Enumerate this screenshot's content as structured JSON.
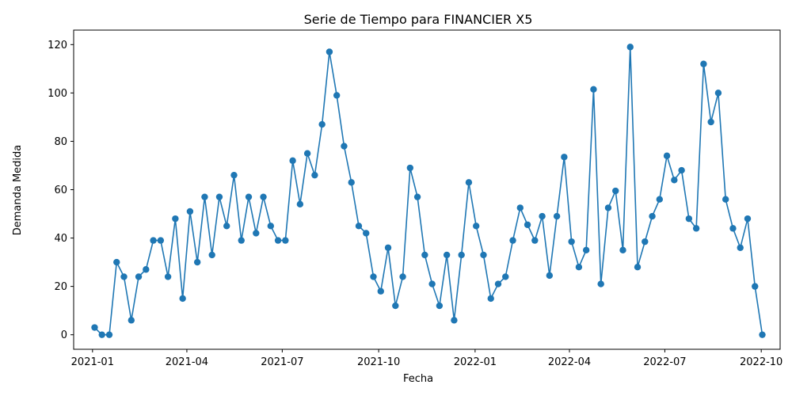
{
  "chart_data": {
    "type": "line",
    "title": "Serie de Tiempo para FINANCIER X5",
    "xlabel": "Fecha",
    "ylabel": "Demanda Medida",
    "x_tick_labels": [
      "2021-01",
      "2021-04",
      "2021-07",
      "2021-10",
      "2022-01",
      "2022-04",
      "2022-07",
      "2022-10"
    ],
    "y_ticks": [
      0,
      20,
      40,
      60,
      80,
      100,
      120
    ],
    "ylim": [
      -6,
      126
    ],
    "xlim": [
      "2020-12-14",
      "2022-10-19"
    ],
    "grid": false,
    "series": [
      {
        "color": "#1f77b4",
        "marker": "circle",
        "points": [
          [
            "2021-01-03",
            3
          ],
          [
            "2021-01-10",
            0
          ],
          [
            "2021-01-17",
            0
          ],
          [
            "2021-01-24",
            30
          ],
          [
            "2021-01-31",
            24
          ],
          [
            "2021-02-07",
            6
          ],
          [
            "2021-02-14",
            24
          ],
          [
            "2021-02-21",
            27
          ],
          [
            "2021-02-28",
            39
          ],
          [
            "2021-03-07",
            39
          ],
          [
            "2021-03-14",
            24
          ],
          [
            "2021-03-21",
            48
          ],
          [
            "2021-03-28",
            15
          ],
          [
            "2021-04-04",
            51
          ],
          [
            "2021-04-11",
            30
          ],
          [
            "2021-04-18",
            57
          ],
          [
            "2021-04-25",
            33
          ],
          [
            "2021-05-02",
            57
          ],
          [
            "2021-05-09",
            45
          ],
          [
            "2021-05-16",
            66
          ],
          [
            "2021-05-23",
            39
          ],
          [
            "2021-05-30",
            57
          ],
          [
            "2021-06-06",
            42
          ],
          [
            "2021-06-13",
            57
          ],
          [
            "2021-06-20",
            45
          ],
          [
            "2021-06-27",
            39
          ],
          [
            "2021-07-04",
            39
          ],
          [
            "2021-07-11",
            72
          ],
          [
            "2021-07-18",
            54
          ],
          [
            "2021-07-25",
            75
          ],
          [
            "2021-08-01",
            66
          ],
          [
            "2021-08-08",
            87
          ],
          [
            "2021-08-15",
            117
          ],
          [
            "2021-08-22",
            99
          ],
          [
            "2021-08-29",
            78
          ],
          [
            "2021-09-05",
            63
          ],
          [
            "2021-09-12",
            45
          ],
          [
            "2021-09-19",
            42
          ],
          [
            "2021-09-26",
            24
          ],
          [
            "2021-10-03",
            18
          ],
          [
            "2021-10-10",
            36
          ],
          [
            "2021-10-17",
            12
          ],
          [
            "2021-10-24",
            24
          ],
          [
            "2021-10-31",
            69
          ],
          [
            "2021-11-07",
            57
          ],
          [
            "2021-11-14",
            33
          ],
          [
            "2021-11-21",
            21
          ],
          [
            "2021-11-28",
            12
          ],
          [
            "2021-12-05",
            33
          ],
          [
            "2021-12-12",
            6
          ],
          [
            "2021-12-19",
            33
          ],
          [
            "2021-12-26",
            63
          ],
          [
            "2022-01-02",
            45
          ],
          [
            "2022-01-09",
            33
          ],
          [
            "2022-01-16",
            15
          ],
          [
            "2022-01-23",
            21
          ],
          [
            "2022-01-30",
            24
          ],
          [
            "2022-02-06",
            39
          ],
          [
            "2022-02-13",
            52.5
          ],
          [
            "2022-02-20",
            45.5
          ],
          [
            "2022-02-27",
            39
          ],
          [
            "2022-03-06",
            49
          ],
          [
            "2022-03-13",
            24.5
          ],
          [
            "2022-03-20",
            49
          ],
          [
            "2022-03-27",
            73.5
          ],
          [
            "2022-04-03",
            38.5
          ],
          [
            "2022-04-10",
            28
          ],
          [
            "2022-04-17",
            35
          ],
          [
            "2022-04-24",
            101.5
          ],
          [
            "2022-05-01",
            21
          ],
          [
            "2022-05-08",
            52.5
          ],
          [
            "2022-05-15",
            59.5
          ],
          [
            "2022-05-22",
            35
          ],
          [
            "2022-05-29",
            119
          ],
          [
            "2022-06-05",
            28
          ],
          [
            "2022-06-12",
            38.5
          ],
          [
            "2022-06-19",
            49
          ],
          [
            "2022-06-26",
            56
          ],
          [
            "2022-07-03",
            74
          ],
          [
            "2022-07-10",
            64
          ],
          [
            "2022-07-17",
            68
          ],
          [
            "2022-07-24",
            48
          ],
          [
            "2022-07-31",
            44
          ],
          [
            "2022-08-07",
            112
          ],
          [
            "2022-08-14",
            88
          ],
          [
            "2022-08-21",
            100
          ],
          [
            "2022-08-28",
            56
          ],
          [
            "2022-09-04",
            44
          ],
          [
            "2022-09-11",
            36
          ],
          [
            "2022-09-18",
            48
          ],
          [
            "2022-09-25",
            20
          ],
          [
            "2022-10-02",
            0
          ]
        ]
      }
    ]
  }
}
